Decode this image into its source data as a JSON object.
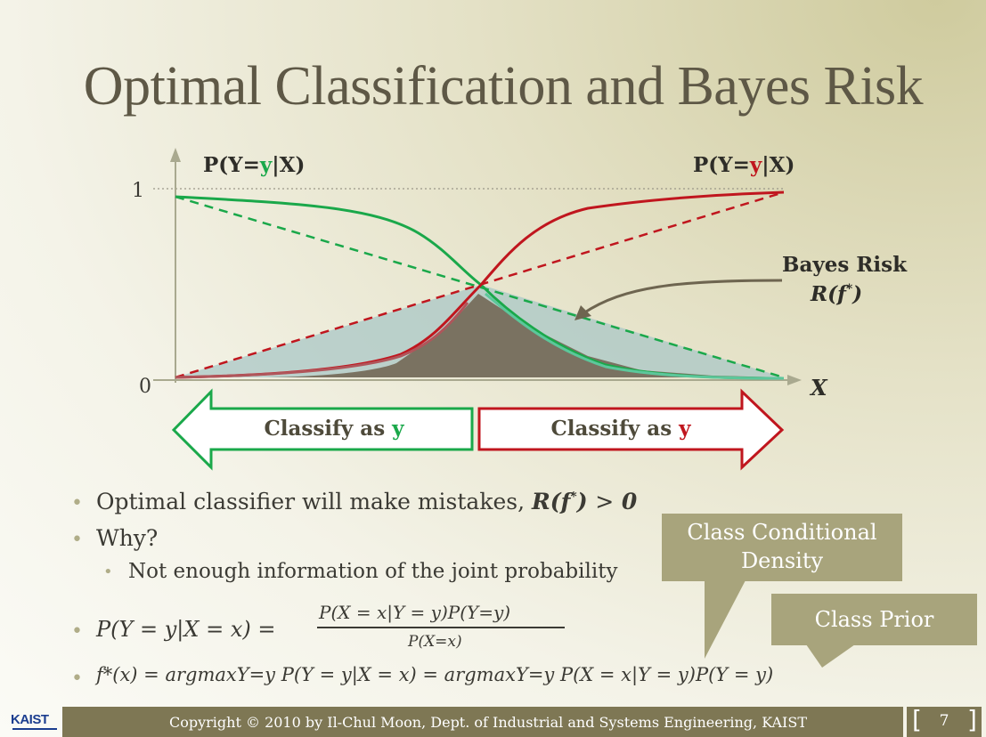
{
  "slide": {
    "title": "Optimal Classification and Bayes Risk",
    "page_number": "7",
    "footer_text": "Copyright © 2010 by Il-Chul Moon, Dept. of Industrial and Systems Engineering, KAIST",
    "logo_text": "KAIST"
  },
  "figure": {
    "y_tick_1": "1",
    "y_tick_0": "0",
    "x_axis_label": "X",
    "left_curve_label": "P(Y=y|X)",
    "right_curve_label": "P(Y=y|X)",
    "bayes_risk_label": "Bayes Risk",
    "bayes_risk_symbol": "R(f*)",
    "left_arrow_label": "Classify as",
    "left_arrow_class": "y",
    "right_arrow_label": "Classify as",
    "right_arrow_class": "y",
    "colors": {
      "green": "#1aa84a",
      "red": "#c0161e",
      "gray_area": "#7a7261",
      "teal_area": "#a9c7c6"
    }
  },
  "bullets": {
    "b1_text": "Optimal classifier will make mistakes,",
    "b1_math": "R(f*) > 0",
    "b2": "Why?",
    "b2_sub": "Not enough information of the joint probability",
    "b3_lhs": "P(Y = y|X = x) =",
    "b3_num": "P(X = x|Y = y)P(Y=y)",
    "b3_den": "P(X=x)",
    "b4": "f*(x) = argmaxY=y P(Y = y|X = x) = argmaxY=y P(X = x|Y = y)P(Y = y)"
  },
  "callouts": {
    "class_conditional": "Class Conditional Density",
    "class_prior": "Class Prior"
  }
}
